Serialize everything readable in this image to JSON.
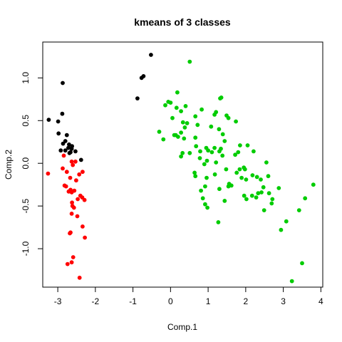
{
  "chart_data": {
    "type": "scatter",
    "title": "kmeans of 3 classes",
    "xlabel": "Comp.1",
    "ylabel": "Comp.2",
    "xlim": [
      -3.4,
      4.05
    ],
    "ylim": [
      -1.45,
      1.42
    ],
    "xticks": [
      -3,
      -2,
      -1,
      0,
      1,
      2,
      3,
      4
    ],
    "yticks": [
      -1.0,
      -0.5,
      0.0,
      0.5,
      1.0
    ],
    "ytick_labels": [
      "-1.0",
      "-0.5",
      "0.0",
      "0.5",
      "1.0"
    ],
    "grid": false,
    "legend": "none",
    "series": [
      {
        "color": "#000000",
        "points": [
          [
            -0.52,
            1.27
          ],
          [
            -0.72,
            1.02
          ],
          [
            -0.77,
            1.0
          ],
          [
            -0.88,
            0.76
          ],
          [
            -2.87,
            0.94
          ],
          [
            -2.88,
            0.58
          ],
          [
            -3.24,
            0.51
          ],
          [
            -2.99,
            0.49
          ],
          [
            -2.98,
            0.35
          ],
          [
            -2.76,
            0.33
          ],
          [
            -2.8,
            0.26
          ],
          [
            -2.86,
            0.23
          ],
          [
            -2.7,
            0.22
          ],
          [
            -2.62,
            0.2
          ],
          [
            -2.72,
            0.18
          ],
          [
            -2.63,
            0.17
          ],
          [
            -2.92,
            0.15
          ],
          [
            -2.8,
            0.15
          ],
          [
            -2.53,
            0.14
          ],
          [
            -2.69,
            0.12
          ],
          [
            -2.66,
            0.13
          ],
          [
            -2.38,
            0.04
          ]
        ]
      },
      {
        "color": "#ff0000",
        "points": [
          [
            -2.84,
            0.09
          ],
          [
            -2.63,
            0.02
          ],
          [
            -2.53,
            0.02
          ],
          [
            -2.6,
            -0.02
          ],
          [
            -3.26,
            -0.12
          ],
          [
            -2.87,
            -0.06
          ],
          [
            -2.76,
            -0.1
          ],
          [
            -2.34,
            -0.1
          ],
          [
            -2.43,
            -0.13
          ],
          [
            -2.67,
            -0.17
          ],
          [
            -2.51,
            -0.2
          ],
          [
            -2.82,
            -0.26
          ],
          [
            -2.78,
            -0.27
          ],
          [
            -2.66,
            -0.31
          ],
          [
            -2.56,
            -0.32
          ],
          [
            -2.71,
            -0.33
          ],
          [
            -2.63,
            -0.34
          ],
          [
            -2.4,
            -0.38
          ],
          [
            -2.35,
            -0.4
          ],
          [
            -2.47,
            -0.42
          ],
          [
            -2.29,
            -0.43
          ],
          [
            -2.62,
            -0.46
          ],
          [
            -2.61,
            -0.5
          ],
          [
            -2.57,
            -0.52
          ],
          [
            -2.63,
            -0.59
          ],
          [
            -2.48,
            -0.62
          ],
          [
            -2.34,
            -0.74
          ],
          [
            -2.66,
            -0.81
          ],
          [
            -2.68,
            -0.82
          ],
          [
            -2.28,
            -0.87
          ],
          [
            -2.59,
            -1.1
          ],
          [
            -2.63,
            -1.16
          ],
          [
            -2.74,
            -1.18
          ],
          [
            -2.42,
            -1.34
          ]
        ]
      },
      {
        "color": "#00cc00",
        "points": [
          [
            0.51,
            1.19
          ],
          [
            1.35,
            0.77
          ],
          [
            1.32,
            0.76
          ],
          [
            0.18,
            0.83
          ],
          [
            -0.06,
            0.72
          ],
          [
            0.0,
            0.71
          ],
          [
            0.4,
            0.67
          ],
          [
            -0.14,
            0.68
          ],
          [
            0.16,
            0.65
          ],
          [
            0.83,
            0.63
          ],
          [
            0.28,
            0.61
          ],
          [
            0.66,
            0.55
          ],
          [
            1.17,
            0.57
          ],
          [
            1.21,
            0.6
          ],
          [
            1.49,
            0.56
          ],
          [
            1.54,
            0.53
          ],
          [
            0.33,
            0.48
          ],
          [
            0.44,
            0.47
          ],
          [
            0.05,
            0.53
          ],
          [
            0.38,
            0.42
          ],
          [
            1.74,
            0.49
          ],
          [
            1.08,
            0.43
          ],
          [
            0.72,
            0.45
          ],
          [
            0.28,
            0.36
          ],
          [
            0.2,
            0.31
          ],
          [
            1.29,
            0.4
          ],
          [
            -0.3,
            0.37
          ],
          [
            0.14,
            0.33
          ],
          [
            0.1,
            0.33
          ],
          [
            0.66,
            0.3
          ],
          [
            0.36,
            0.29
          ],
          [
            0.68,
            0.2
          ],
          [
            -0.19,
            0.28
          ],
          [
            1.39,
            0.34
          ],
          [
            1.44,
            0.26
          ],
          [
            1.85,
            0.21
          ],
          [
            2.05,
            0.21
          ],
          [
            0.95,
            0.18
          ],
          [
            1.17,
            0.18
          ],
          [
            1.34,
            0.17
          ],
          [
            1.3,
            0.14
          ],
          [
            2.21,
            0.14
          ],
          [
            0.32,
            0.12
          ],
          [
            0.51,
            0.12
          ],
          [
            0.79,
            0.14
          ],
          [
            1.0,
            0.15
          ],
          [
            1.1,
            0.13
          ],
          [
            1.8,
            0.13
          ],
          [
            1.72,
            0.1
          ],
          [
            1.38,
            0.09
          ],
          [
            0.78,
            0.06
          ],
          [
            0.97,
            0.03
          ],
          [
            1.21,
            0.01
          ],
          [
            0.28,
            0.08
          ],
          [
            2.55,
            0.01
          ],
          [
            0.9,
            -0.01
          ],
          [
            1.95,
            -0.05
          ],
          [
            1.84,
            -0.07
          ],
          [
            1.48,
            -0.07
          ],
          [
            1.98,
            -0.07
          ],
          [
            0.64,
            -0.11
          ],
          [
            1.76,
            -0.11
          ],
          [
            1.18,
            -0.13
          ],
          [
            0.66,
            -0.15
          ],
          [
            0.96,
            -0.17
          ],
          [
            2.18,
            -0.14
          ],
          [
            1.89,
            -0.17
          ],
          [
            2.3,
            -0.16
          ],
          [
            2.6,
            -0.15
          ],
          [
            2.4,
            -0.19
          ],
          [
            2.01,
            -0.19
          ],
          [
            3.8,
            -0.25
          ],
          [
            1.56,
            -0.24
          ],
          [
            1.62,
            -0.26
          ],
          [
            1.54,
            -0.27
          ],
          [
            0.92,
            -0.27
          ],
          [
            2.88,
            -0.29
          ],
          [
            2.47,
            -0.28
          ],
          [
            1.3,
            -0.3
          ],
          [
            0.81,
            -0.32
          ],
          [
            2.42,
            -0.34
          ],
          [
            2.62,
            -0.35
          ],
          [
            2.33,
            -0.35
          ],
          [
            2.17,
            -0.38
          ],
          [
            2.02,
            -0.42
          ],
          [
            1.96,
            -0.38
          ],
          [
            2.28,
            -0.4
          ],
          [
            0.86,
            -0.41
          ],
          [
            1.44,
            -0.44
          ],
          [
            2.71,
            -0.42
          ],
          [
            3.58,
            -0.41
          ],
          [
            2.49,
            -0.55
          ],
          [
            0.92,
            -0.48
          ],
          [
            3.42,
            -0.55
          ],
          [
            2.69,
            -0.47
          ],
          [
            0.98,
            -0.52
          ],
          [
            3.08,
            -0.68
          ],
          [
            1.27,
            -0.69
          ],
          [
            2.94,
            -0.78
          ],
          [
            3.5,
            -1.17
          ],
          [
            3.23,
            -1.38
          ]
        ]
      }
    ]
  }
}
